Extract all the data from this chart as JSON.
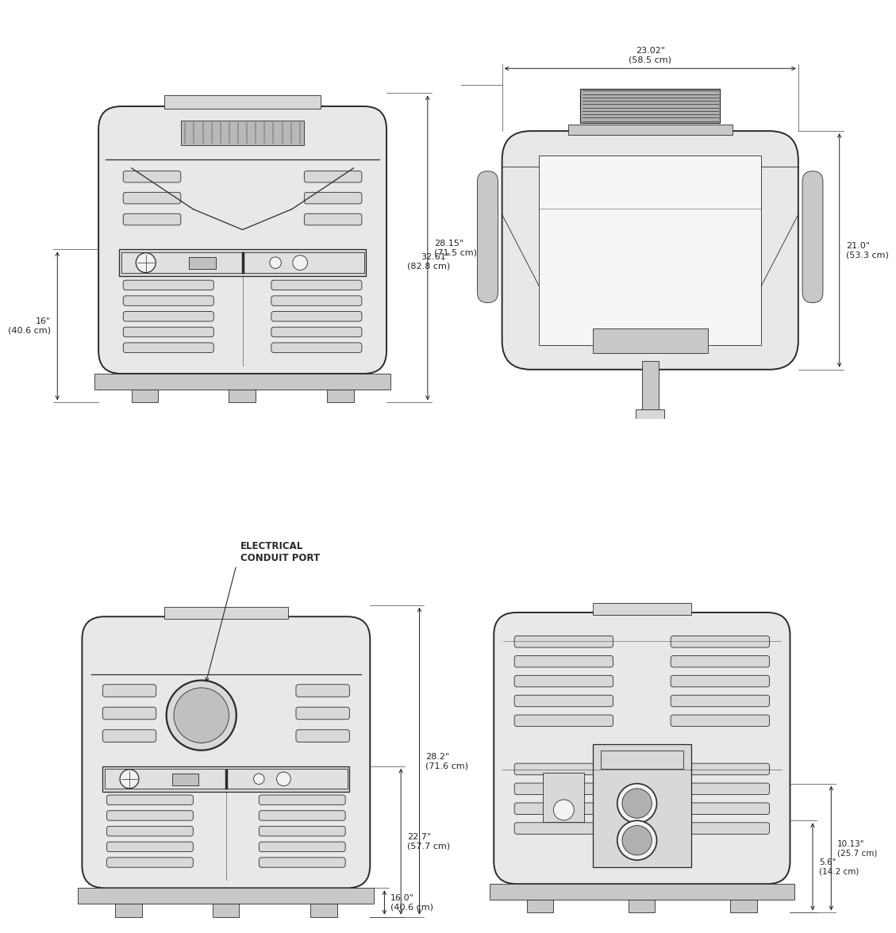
{
  "bg_color": "#ffffff",
  "lc": "#2a2a2a",
  "lw_main": 1.4,
  "lw_med": 0.9,
  "lw_thin": 0.6,
  "fc_body": "#e8e8e8",
  "fc_dark": "#c8c8c8",
  "fc_light": "#f2f2f2",
  "fc_mid": "#d8d8d8",
  "dim_color": "#222222",
  "fs_dim": 8.0,
  "dims": {
    "tl_right": "28.15\"\n(71.5 cm)",
    "tl_left": "16\"\n(40.6 cm)",
    "tr_top": "23.02\"\n(58.5 cm)",
    "tr_left": "32.61\"\n(82.8 cm)",
    "tr_right": "21.0\"\n(53.3 cm)",
    "bl_right1": "28.2\"\n(71.6 cm)",
    "bl_right2": "22.7\"\n(57.7 cm)",
    "bl_right3": "16.0\"\n(40.6 cm)",
    "br_right1": "10.13\"\n(25.7 cm)",
    "br_right2": "5.6\"\n(14.2 cm)",
    "conduit": "ELECTRICAL\nCONDUIT PORT"
  }
}
